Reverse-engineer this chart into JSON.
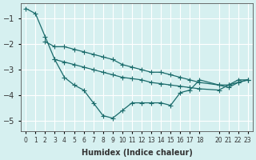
{
  "title": "",
  "xlabel": "Humidex (Indice chaleur)",
  "ylabel": "",
  "bg_color": "#d6f0f0",
  "grid_color": "#ffffff",
  "line_color": "#1a6b6b",
  "marker": "+",
  "marker_size": 5,
  "xlim": [
    -0.5,
    23.5
  ],
  "ylim": [
    -5.4,
    -0.4
  ],
  "yticks": [
    -5,
    -4,
    -3,
    -2,
    -1
  ],
  "xticks": [
    0,
    1,
    2,
    3,
    4,
    5,
    6,
    7,
    8,
    9,
    10,
    11,
    12,
    13,
    14,
    15,
    16,
    17,
    18,
    20,
    21,
    22,
    23
  ],
  "xtick_labels": [
    "0",
    "1",
    "2",
    "3",
    "4",
    "5",
    "6",
    "7",
    "8",
    "9",
    "10",
    "11",
    "12",
    "13",
    "14",
    "15",
    "16",
    "17",
    "18",
    "20",
    "21",
    "22",
    "23"
  ],
  "series1_x": [
    0,
    1,
    2,
    3,
    4,
    5,
    6,
    7,
    8,
    9,
    10,
    11,
    12,
    13,
    14,
    15,
    16,
    17,
    18,
    20,
    21,
    22,
    23
  ],
  "series1_y": [
    -0.6,
    -0.8,
    -1.7,
    -2.6,
    -3.3,
    -3.6,
    -3.8,
    -4.3,
    -4.8,
    -4.9,
    -4.6,
    -4.3,
    -4.3,
    -4.3,
    -4.3,
    -4.4,
    -3.9,
    -3.8,
    -3.4,
    -3.6,
    -3.6,
    -3.4,
    -3.4
  ],
  "series2_x": [
    2,
    3,
    4,
    5,
    6,
    7,
    8,
    9,
    10,
    11,
    12,
    13,
    14,
    15,
    16,
    17,
    18,
    20,
    21,
    22,
    23
  ],
  "series2_y": [
    -1.9,
    -2.1,
    -2.1,
    -2.2,
    -2.3,
    -2.4,
    -2.5,
    -2.6,
    -2.8,
    -2.9,
    -3.0,
    -3.1,
    -3.1,
    -3.2,
    -3.3,
    -3.4,
    -3.5,
    -3.6,
    -3.7,
    -3.5,
    -3.4
  ],
  "series3_x": [
    3,
    4,
    5,
    6,
    7,
    8,
    9,
    10,
    11,
    12,
    13,
    14,
    15,
    16,
    17,
    18,
    20,
    21,
    22,
    23
  ],
  "series3_y": [
    -2.6,
    -2.7,
    -2.8,
    -2.9,
    -3.0,
    -3.1,
    -3.2,
    -3.3,
    -3.35,
    -3.4,
    -3.5,
    -3.55,
    -3.6,
    -3.65,
    -3.7,
    -3.75,
    -3.8,
    -3.6,
    -3.5,
    -3.4
  ]
}
